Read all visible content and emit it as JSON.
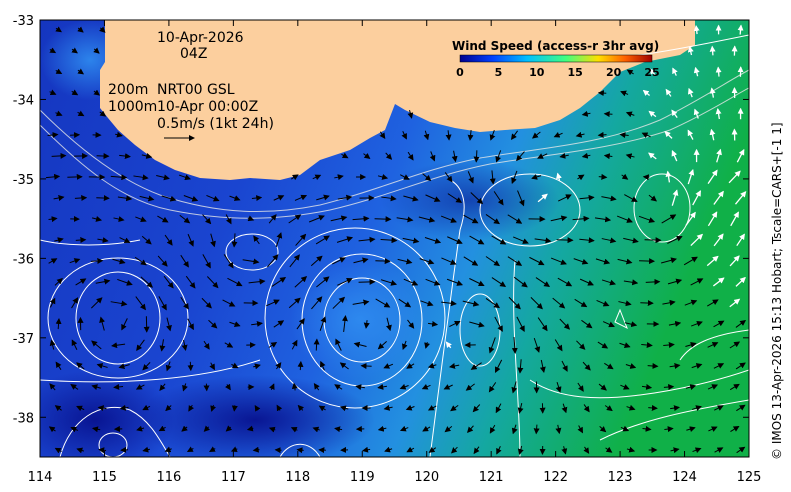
{
  "map": {
    "date_label": "10-Apr-2026",
    "hour_label": "04Z",
    "depth_line1_left": "200m",
    "depth_line1_right": "NRT00 GSL",
    "depth_line2_left": "1000m",
    "depth_line2_right": "10-Apr 00:00Z",
    "scale_label": "0.5m/s (1kt 24h)",
    "credit": "© IMOS 13-Apr-2026 15:13 Hobart; Tscale=CARS+[-1 1]",
    "lon_range": [
      114,
      125
    ],
    "lat_range": [
      -38.5,
      -33
    ],
    "lon_ticks": [
      "114",
      "115",
      "116",
      "117",
      "118",
      "119",
      "120",
      "121",
      "122",
      "123",
      "124",
      "125"
    ],
    "lat_ticks": [
      "-33",
      "-34",
      "-35",
      "-36",
      "-37",
      "-38"
    ],
    "land_color": "#fccf9e",
    "colors": {
      "deep_blue": "#0a1aa8",
      "mid_blue": "#1f50d8",
      "light_blue": "#2a80e8",
      "teal": "#10a0b0",
      "green": "#10b050"
    }
  },
  "colorbar": {
    "title": "Wind Speed (access-r 3hr avg)",
    "ticks": [
      "0",
      "5",
      "10",
      "15",
      "20",
      "25"
    ],
    "stops": [
      "#00008f",
      "#0040ff",
      "#00c0ff",
      "#40ff80",
      "#ffe000",
      "#ff6000",
      "#a00000"
    ]
  }
}
